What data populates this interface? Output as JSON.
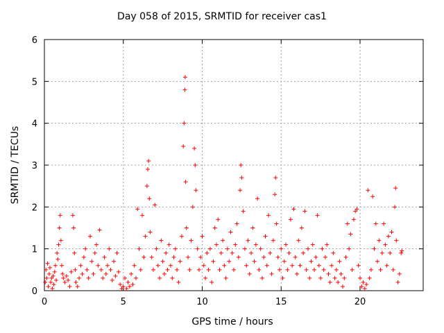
{
  "chart_data": {
    "type": "scatter",
    "title": "Day 058 of 2015, SRMTID for receiver cas1",
    "xlabel": "GPS time / hours",
    "ylabel": "SRMTID / TECUs",
    "xlim": [
      0,
      24
    ],
    "ylim": [
      0,
      6
    ],
    "xticks": [
      0,
      5,
      10,
      15,
      20
    ],
    "yticks": [
      0,
      1,
      2,
      3,
      4,
      5,
      6
    ],
    "grid": true,
    "marker": "+",
    "color": "#ff0000",
    "series": [
      {
        "name": "SRMTID",
        "points": [
          [
            0.05,
            0.2
          ],
          [
            0.1,
            0.5
          ],
          [
            0.15,
            0.3
          ],
          [
            0.2,
            0.65
          ],
          [
            0.25,
            0.1
          ],
          [
            0.3,
            0.4
          ],
          [
            0.35,
            0.55
          ],
          [
            0.4,
            0.2
          ],
          [
            0.45,
            0.3
          ],
          [
            0.5,
            0.05
          ],
          [
            0.55,
            0.35
          ],
          [
            0.6,
            0.15
          ],
          [
            0.65,
            0.45
          ],
          [
            0.7,
            0.6
          ],
          [
            0.75,
            0.25
          ],
          [
            0.8,
            0.9
          ],
          [
            0.85,
            0.75
          ],
          [
            0.9,
            1.1
          ],
          [
            0.95,
            1.5
          ],
          [
            1.0,
            1.8
          ],
          [
            1.05,
            1.2
          ],
          [
            1.1,
            0.6
          ],
          [
            1.15,
            0.4
          ],
          [
            1.2,
            0.3
          ],
          [
            1.3,
            0.2
          ],
          [
            1.4,
            0.35
          ],
          [
            1.5,
            0.25
          ],
          [
            1.6,
            0.1
          ],
          [
            1.7,
            0.45
          ],
          [
            1.8,
            1.8
          ],
          [
            1.85,
            1.5
          ],
          [
            1.9,
            0.9
          ],
          [
            1.95,
            0.5
          ],
          [
            2.0,
            0.2
          ],
          [
            2.1,
            0.1
          ],
          [
            2.2,
            0.3
          ],
          [
            2.3,
            0.6
          ],
          [
            2.4,
            0.4
          ],
          [
            2.5,
            0.8
          ],
          [
            2.6,
            1.0
          ],
          [
            2.7,
            0.5
          ],
          [
            2.8,
            0.3
          ],
          [
            2.9,
            1.3
          ],
          [
            3.0,
            0.7
          ],
          [
            3.1,
            0.4
          ],
          [
            3.2,
            0.9
          ],
          [
            3.3,
            1.1
          ],
          [
            3.4,
            0.6
          ],
          [
            3.5,
            1.45
          ],
          [
            3.6,
            0.5
          ],
          [
            3.7,
            0.3
          ],
          [
            3.8,
            0.8
          ],
          [
            3.9,
            0.4
          ],
          [
            4.0,
            0.6
          ],
          [
            4.1,
            1.0
          ],
          [
            4.2,
            0.5
          ],
          [
            4.3,
            0.25
          ],
          [
            4.4,
            0.7
          ],
          [
            4.5,
            0.35
          ],
          [
            4.6,
            0.9
          ],
          [
            4.7,
            0.45
          ],
          [
            4.8,
            0.15
          ],
          [
            4.9,
            0.05
          ],
          [
            5.0,
            0.1
          ],
          [
            5.1,
            0.3
          ],
          [
            5.2,
            0.05
          ],
          [
            5.3,
            0.2
          ],
          [
            5.4,
            0.1
          ],
          [
            5.5,
            0.4
          ],
          [
            5.6,
            0.15
          ],
          [
            5.7,
            0.6
          ],
          [
            5.8,
            0.3
          ],
          [
            5.9,
            1.95
          ],
          [
            6.0,
            1.0
          ],
          [
            6.1,
            0.5
          ],
          [
            6.2,
            1.8
          ],
          [
            6.3,
            0.8
          ],
          [
            6.4,
            1.3
          ],
          [
            6.5,
            2.5
          ],
          [
            6.55,
            2.9
          ],
          [
            6.6,
            3.1
          ],
          [
            6.65,
            2.2
          ],
          [
            6.7,
            1.4
          ],
          [
            6.8,
            0.8
          ],
          [
            6.9,
            0.5
          ],
          [
            7.0,
            2.05
          ],
          [
            7.1,
            1.0
          ],
          [
            7.2,
            0.6
          ],
          [
            7.3,
            0.3
          ],
          [
            7.4,
            1.2
          ],
          [
            7.5,
            0.7
          ],
          [
            7.6,
            0.4
          ],
          [
            7.7,
            0.9
          ],
          [
            7.8,
            0.5
          ],
          [
            7.9,
            1.1
          ],
          [
            8.0,
            0.6
          ],
          [
            8.1,
            0.3
          ],
          [
            8.2,
            0.8
          ],
          [
            8.3,
            1.0
          ],
          [
            8.4,
            0.5
          ],
          [
            8.5,
            0.2
          ],
          [
            8.6,
            0.7
          ],
          [
            8.7,
            1.3
          ],
          [
            8.8,
            3.45
          ],
          [
            8.85,
            4.0
          ],
          [
            8.9,
            4.8
          ],
          [
            8.92,
            5.1
          ],
          [
            8.95,
            2.6
          ],
          [
            9.0,
            1.5
          ],
          [
            9.1,
            0.8
          ],
          [
            9.2,
            0.5
          ],
          [
            9.3,
            1.2
          ],
          [
            9.4,
            2.0
          ],
          [
            9.5,
            3.4
          ],
          [
            9.55,
            3.0
          ],
          [
            9.6,
            2.4
          ],
          [
            9.7,
            1.0
          ],
          [
            9.8,
            0.5
          ],
          [
            9.9,
            0.8
          ],
          [
            10.0,
            1.3
          ],
          [
            10.1,
            0.6
          ],
          [
            10.2,
            0.3
          ],
          [
            10.3,
            0.9
          ],
          [
            10.4,
            0.5
          ],
          [
            10.5,
            1.0
          ],
          [
            10.6,
            0.2
          ],
          [
            10.7,
            0.7
          ],
          [
            10.8,
            1.5
          ],
          [
            10.9,
            1.1
          ],
          [
            11.0,
            1.7
          ],
          [
            11.1,
            0.5
          ],
          [
            11.2,
            0.9
          ],
          [
            11.3,
            1.2
          ],
          [
            11.4,
            0.6
          ],
          [
            11.5,
            0.3
          ],
          [
            11.6,
            1.0
          ],
          [
            11.7,
            0.7
          ],
          [
            11.8,
            1.4
          ],
          [
            11.9,
            0.9
          ],
          [
            12.0,
            0.5
          ],
          [
            12.1,
            1.1
          ],
          [
            12.2,
            1.6
          ],
          [
            12.3,
            0.8
          ],
          [
            12.4,
            2.4
          ],
          [
            12.45,
            3.0
          ],
          [
            12.5,
            2.7
          ],
          [
            12.6,
            1.9
          ],
          [
            12.7,
            1.0
          ],
          [
            12.8,
            0.6
          ],
          [
            12.9,
            1.2
          ],
          [
            13.0,
            0.4
          ],
          [
            13.1,
            0.9
          ],
          [
            13.2,
            1.5
          ],
          [
            13.3,
            0.7
          ],
          [
            13.4,
            1.1
          ],
          [
            13.5,
            2.2
          ],
          [
            13.6,
            0.5
          ],
          [
            13.7,
            1.0
          ],
          [
            13.8,
            0.3
          ],
          [
            13.9,
            0.8
          ],
          [
            14.0,
            1.3
          ],
          [
            14.1,
            0.6
          ],
          [
            14.2,
            1.8
          ],
          [
            14.3,
            0.9
          ],
          [
            14.4,
            0.4
          ],
          [
            14.5,
            1.2
          ],
          [
            14.6,
            2.3
          ],
          [
            14.65,
            2.7
          ],
          [
            14.7,
            1.6
          ],
          [
            14.8,
            0.8
          ],
          [
            14.9,
            0.5
          ],
          [
            15.0,
            1.0
          ],
          [
            15.1,
            0.3
          ],
          [
            15.2,
            0.7
          ],
          [
            15.3,
            1.1
          ],
          [
            15.4,
            0.5
          ],
          [
            15.5,
            0.9
          ],
          [
            15.6,
            1.7
          ],
          [
            15.7,
            0.6
          ],
          [
            15.8,
            1.95
          ],
          [
            15.9,
            0.8
          ],
          [
            16.0,
            0.4
          ],
          [
            16.1,
            1.2
          ],
          [
            16.2,
            0.6
          ],
          [
            16.3,
            1.5
          ],
          [
            16.4,
            0.9
          ],
          [
            16.5,
            1.9
          ],
          [
            16.6,
            0.5
          ],
          [
            16.7,
            1.0
          ],
          [
            16.8,
            0.3
          ],
          [
            16.9,
            0.7
          ],
          [
            17.0,
            1.1
          ],
          [
            17.1,
            0.5
          ],
          [
            17.2,
            0.8
          ],
          [
            17.3,
            1.8
          ],
          [
            17.4,
            0.6
          ],
          [
            17.5,
            0.3
          ],
          [
            17.6,
            1.0
          ],
          [
            17.7,
            0.5
          ],
          [
            17.8,
            0.8
          ],
          [
            17.9,
            1.1
          ],
          [
            18.0,
            0.4
          ],
          [
            18.1,
            0.2
          ],
          [
            18.2,
            0.6
          ],
          [
            18.3,
            0.9
          ],
          [
            18.4,
            0.3
          ],
          [
            18.5,
            0.5
          ],
          [
            18.6,
            0.2
          ],
          [
            18.7,
            0.7
          ],
          [
            18.8,
            0.4
          ],
          [
            18.9,
            0.1
          ],
          [
            19.0,
            0.3
          ],
          [
            19.1,
            0.8
          ],
          [
            19.2,
            1.6
          ],
          [
            19.3,
            1.0
          ],
          [
            19.4,
            1.35
          ],
          [
            19.5,
            0.5
          ],
          [
            19.6,
            1.7
          ],
          [
            19.7,
            1.9
          ],
          [
            19.8,
            1.95
          ],
          [
            19.9,
            0.6
          ],
          [
            20.0,
            0.3
          ],
          [
            20.1,
            0.1
          ],
          [
            20.2,
            0.2
          ],
          [
            20.3,
            0.05
          ],
          [
            20.4,
            0.15
          ],
          [
            20.5,
            2.4
          ],
          [
            20.6,
            0.3
          ],
          [
            20.7,
            0.5
          ],
          [
            20.8,
            2.25
          ],
          [
            20.9,
            1.0
          ],
          [
            21.0,
            1.6
          ],
          [
            21.1,
            0.7
          ],
          [
            21.2,
            1.2
          ],
          [
            21.3,
            0.5
          ],
          [
            21.4,
            0.9
          ],
          [
            21.5,
            1.6
          ],
          [
            21.6,
            1.1
          ],
          [
            21.7,
            0.6
          ],
          [
            21.8,
            1.3
          ],
          [
            21.9,
            0.9
          ],
          [
            22.0,
            1.4
          ],
          [
            22.1,
            0.5
          ],
          [
            22.2,
            2.0
          ],
          [
            22.25,
            2.45
          ],
          [
            22.3,
            1.2
          ],
          [
            22.4,
            0.2
          ],
          [
            22.5,
            0.4
          ],
          [
            22.6,
            0.9
          ],
          [
            22.65,
            0.95
          ]
        ]
      }
    ]
  }
}
